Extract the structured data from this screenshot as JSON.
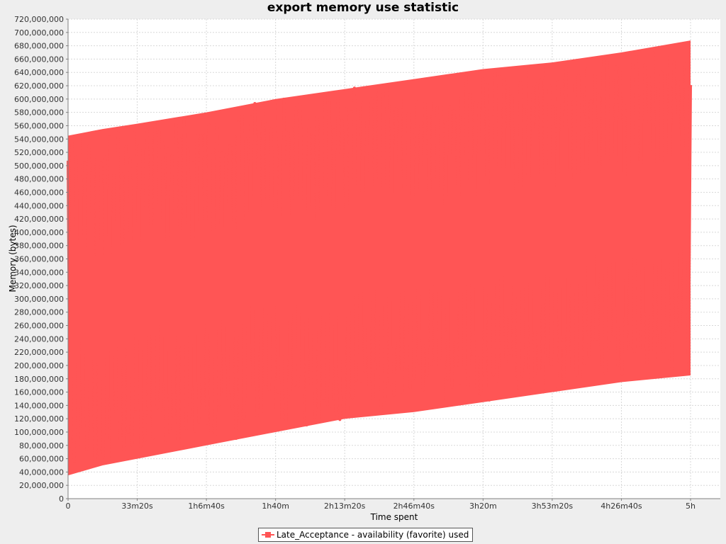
{
  "chart_data": {
    "type": "line",
    "title": "export memory use statistic",
    "xlabel": "Time spent",
    "ylabel": "Memory (bytes)",
    "x_unit": "seconds",
    "xlim": [
      0,
      18000
    ],
    "ylim": [
      0,
      720000000
    ],
    "x_ticks": [
      {
        "value": 0,
        "label": "0"
      },
      {
        "value": 2000,
        "label": "33m20s"
      },
      {
        "value": 4000,
        "label": "1h6m40s"
      },
      {
        "value": 6000,
        "label": "1h40m"
      },
      {
        "value": 8000,
        "label": "2h13m20s"
      },
      {
        "value": 10000,
        "label": "2h46m40s"
      },
      {
        "value": 12000,
        "label": "3h20m"
      },
      {
        "value": 14000,
        "label": "3h53m20s"
      },
      {
        "value": 16000,
        "label": "4h26m40s"
      },
      {
        "value": 18000,
        "label": "5h"
      }
    ],
    "y_ticks": [
      "0",
      "20,000,000",
      "40,000,000",
      "60,000,000",
      "80,000,000",
      "100,000,000",
      "120,000,000",
      "140,000,000",
      "160,000,000",
      "180,000,000",
      "200,000,000",
      "220,000,000",
      "240,000,000",
      "260,000,000",
      "280,000,000",
      "300,000,000",
      "320,000,000",
      "340,000,000",
      "360,000,000",
      "380,000,000",
      "400,000,000",
      "420,000,000",
      "440,000,000",
      "460,000,000",
      "480,000,000",
      "500,000,000",
      "520,000,000",
      "540,000,000",
      "560,000,000",
      "580,000,000",
      "600,000,000",
      "620,000,000",
      "640,000,000",
      "660,000,000",
      "680,000,000",
      "700,000,000",
      "720,000,000"
    ],
    "grid": true,
    "legend_position": "bottom",
    "series": [
      {
        "name": "Late_Acceptance - availability (favorite) used",
        "color": "#ff5555",
        "envelope": {
          "x": [
            0,
            1000,
            2000,
            4000,
            6000,
            8000,
            10000,
            12000,
            14000,
            16000,
            18000
          ],
          "upper": [
            545000000,
            555000000,
            563000000,
            580000000,
            600000000,
            615000000,
            630000000,
            645000000,
            655000000,
            670000000,
            688000000
          ],
          "lower": [
            35000000,
            50000000,
            60000000,
            80000000,
            100000000,
            120000000,
            130000000,
            145000000,
            160000000,
            175000000,
            185000000
          ]
        }
      }
    ]
  }
}
